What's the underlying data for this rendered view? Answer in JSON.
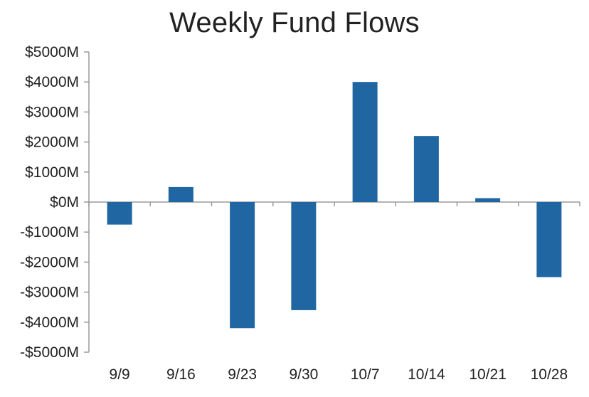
{
  "chart_data": {
    "type": "bar",
    "title": "Weekly Fund Flows",
    "xlabel": "",
    "ylabel": "",
    "categories": [
      "9/9",
      "9/16",
      "9/23",
      "9/30",
      "10/7",
      "10/14",
      "10/21",
      "10/28"
    ],
    "values": [
      -750,
      500,
      -4200,
      -3600,
      4000,
      2200,
      130,
      -2500
    ],
    "ylim": [
      -5000,
      5000
    ],
    "yticks": [
      5000,
      4000,
      3000,
      2000,
      1000,
      0,
      -1000,
      -2000,
      -3000,
      -4000,
      -5000
    ],
    "ytick_labels": [
      "$5000M",
      "$4000M",
      "$3000M",
      "$2000M",
      "$1000M",
      "$0M",
      "-$1000M",
      "-$2000M",
      "-$3000M",
      "-$4000M",
      "-$5000M"
    ],
    "grid": false,
    "legend": "none",
    "bar_color": "#1f66a2",
    "axis_color": "#9a9a9a"
  }
}
